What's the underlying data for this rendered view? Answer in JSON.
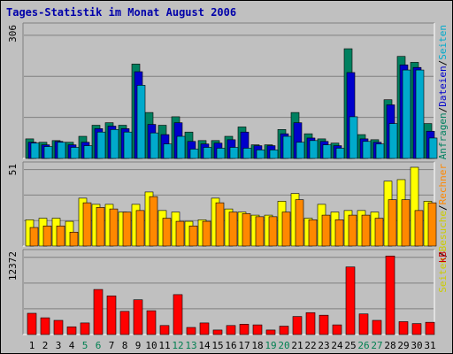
{
  "title": "Tages-Statistik im Monat August 2006",
  "chart_data": [
    {
      "type": "bar",
      "name": "hits-panel",
      "ymax_label": "306",
      "ylim": [
        0,
        306
      ],
      "right_labels": [
        {
          "text": "Anfragen",
          "color": "#008060"
        },
        {
          "text": "/",
          "color": "#000000"
        },
        {
          "text": "Dateien",
          "color": "#0000cc"
        },
        {
          "text": "/",
          "color": "#000000"
        },
        {
          "text": "Seiten",
          "color": "#00aacc"
        }
      ],
      "series": [
        {
          "name": "Anfragen",
          "color": "#008060",
          "values": [
            46,
            38,
            42,
            38,
            52,
            78,
            84,
            78,
            222,
            108,
            78,
            98,
            62,
            42,
            42,
            52,
            74,
            32,
            32,
            68,
            108,
            58,
            46,
            36,
            258,
            56,
            44,
            138,
            240,
            226,
            82
          ]
        },
        {
          "name": "Dateien",
          "color": "#0000cc",
          "values": [
            38,
            32,
            40,
            32,
            38,
            70,
            76,
            70,
            204,
            80,
            56,
            84,
            40,
            34,
            36,
            44,
            62,
            30,
            30,
            58,
            84,
            48,
            40,
            30,
            202,
            46,
            38,
            126,
            220,
            214,
            64
          ]
        },
        {
          "name": "Seiten",
          "color": "#00aacc",
          "values": [
            36,
            28,
            38,
            26,
            30,
            62,
            68,
            62,
            172,
            60,
            34,
            52,
            22,
            26,
            24,
            26,
            24,
            20,
            20,
            52,
            38,
            42,
            32,
            24,
            98,
            40,
            34,
            82,
            208,
            208,
            48
          ]
        }
      ]
    },
    {
      "type": "bar",
      "name": "visits-panel",
      "ymax_label": "51",
      "ylim": [
        0,
        51
      ],
      "right_labels": [
        {
          "text": "Seiten",
          "color": "#cccc00"
        },
        {
          "text": "/",
          "color": "#000000"
        },
        {
          "text": "Besuche",
          "color": "#cccc00"
        },
        {
          "text": "/",
          "color": "#000000"
        },
        {
          "text": "Rechner",
          "color": "#ff8800"
        }
      ],
      "series": [
        {
          "name": "Besuche",
          "color": "#ffff00",
          "values": [
            17,
            18,
            18,
            16,
            31,
            27,
            27,
            22,
            27,
            35,
            23,
            22,
            16,
            17,
            31,
            24,
            22,
            20,
            20,
            29,
            34,
            18,
            27,
            22,
            23,
            23,
            22,
            42,
            43,
            51,
            29
          ]
        },
        {
          "name": "Rechner",
          "color": "#ff8800",
          "values": [
            12,
            13,
            13,
            9,
            28,
            25,
            24,
            22,
            23,
            32,
            18,
            16,
            13,
            16,
            28,
            22,
            21,
            19,
            19,
            22,
            30,
            17,
            20,
            17,
            20,
            20,
            18,
            30,
            30,
            23,
            28
          ]
        }
      ]
    },
    {
      "type": "bar",
      "name": "kb-panel",
      "ymax_label": "12372",
      "ylim": [
        0,
        12372
      ],
      "right_labels": [
        {
          "text": "kB",
          "color": "#cc0000"
        }
      ],
      "series": [
        {
          "name": "kB",
          "color": "#ff0000",
          "values": [
            3300,
            2600,
            2200,
            1200,
            1800,
            7000,
            6000,
            3600,
            5400,
            3700,
            1400,
            6200,
            1100,
            1800,
            700,
            1400,
            1600,
            1500,
            700,
            1300,
            2800,
            3400,
            3000,
            1500,
            10500,
            3200,
            2200,
            12200,
            2000,
            1700,
            1900
          ]
        }
      ]
    }
  ],
  "x_labels": [
    {
      "text": "1",
      "color": "#000000"
    },
    {
      "text": "2",
      "color": "#000000"
    },
    {
      "text": "3",
      "color": "#000000"
    },
    {
      "text": "4",
      "color": "#000000"
    },
    {
      "text": "5",
      "color": "#007f50"
    },
    {
      "text": "6",
      "color": "#007f50"
    },
    {
      "text": "7",
      "color": "#000000"
    },
    {
      "text": "8",
      "color": "#000000"
    },
    {
      "text": "9",
      "color": "#000000"
    },
    {
      "text": "10",
      "color": "#000000"
    },
    {
      "text": "11",
      "color": "#000000"
    },
    {
      "text": "12",
      "color": "#007f50"
    },
    {
      "text": "13",
      "color": "#007f50"
    },
    {
      "text": "14",
      "color": "#000000"
    },
    {
      "text": "15",
      "color": "#000000"
    },
    {
      "text": "16",
      "color": "#000000"
    },
    {
      "text": "17",
      "color": "#000000"
    },
    {
      "text": "18",
      "color": "#000000"
    },
    {
      "text": "19",
      "color": "#007f50"
    },
    {
      "text": "20",
      "color": "#007f50"
    },
    {
      "text": "21",
      "color": "#000000"
    },
    {
      "text": "22",
      "color": "#000000"
    },
    {
      "text": "23",
      "color": "#000000"
    },
    {
      "text": "24",
      "color": "#000000"
    },
    {
      "text": "25",
      "color": "#000000"
    },
    {
      "text": "26",
      "color": "#007f50"
    },
    {
      "text": "27",
      "color": "#007f50"
    },
    {
      "text": "28",
      "color": "#000000"
    },
    {
      "text": "29",
      "color": "#000000"
    },
    {
      "text": "30",
      "color": "#000000"
    },
    {
      "text": "31",
      "color": "#000000"
    }
  ]
}
